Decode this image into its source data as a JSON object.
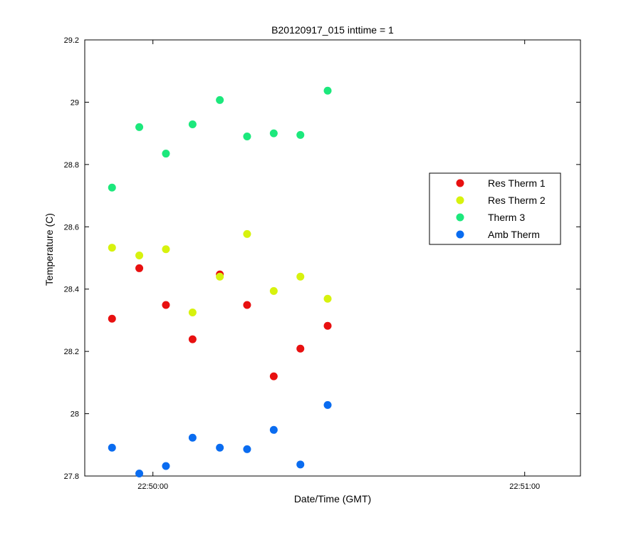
{
  "chart_data": {
    "type": "scatter",
    "title": "B20120917_015 inttime = 1",
    "xlabel": "Date/Time (GMT)",
    "ylabel": "Temperature (C)",
    "xlim": [
      "22:49:49",
      "22:51:09"
    ],
    "ylim": [
      27.8,
      29.2
    ],
    "x_ticks": [
      "22:50:00",
      "22:51:00"
    ],
    "y_ticks": [
      "27.8",
      "28",
      "28.2",
      "28.4",
      "28.6",
      "28.8",
      "29",
      "29.2"
    ],
    "grid": false,
    "legend_position": "right",
    "x": [
      "22:49:53.4",
      "22:49:57.8",
      "22:50:02.1",
      "22:50:06.4",
      "22:50:10.8",
      "22:50:15.2",
      "22:50:19.5",
      "22:50:23.8",
      "22:50:28.2"
    ],
    "series": [
      {
        "name": "Res Therm 1",
        "color": "#e81010",
        "values": [
          28.305,
          28.467,
          28.349,
          28.239,
          28.447,
          28.349,
          28.12,
          28.209,
          28.282
        ]
      },
      {
        "name": "Res Therm 2",
        "color": "#d7f20e",
        "values": [
          28.533,
          28.508,
          28.528,
          28.325,
          28.44,
          28.577,
          28.394,
          28.44,
          28.369
        ]
      },
      {
        "name": "Therm 3",
        "color": "#1ce87c",
        "values": [
          28.726,
          28.92,
          28.835,
          28.929,
          29.007,
          28.89,
          28.9,
          28.895,
          29.037
        ]
      },
      {
        "name": "Amb Therm",
        "color": "#0a6cf0",
        "values": [
          27.891,
          27.808,
          27.832,
          27.923,
          27.891,
          27.886,
          27.948,
          27.837,
          28.028
        ]
      }
    ]
  }
}
